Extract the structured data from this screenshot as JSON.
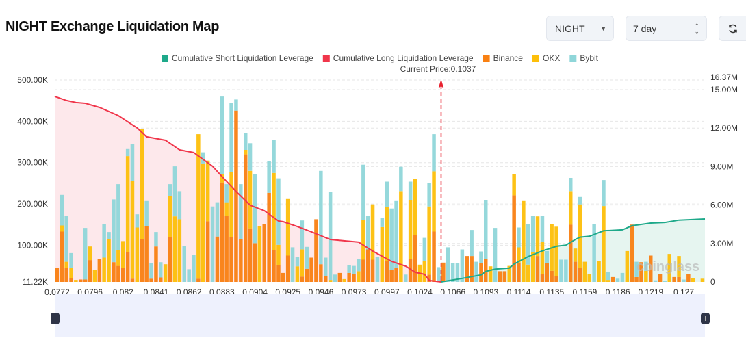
{
  "header": {
    "title": "NIGHT Exchange Liquidation Map",
    "symbol_select": {
      "value": "NIGHT",
      "icon": "caret-down-icon"
    },
    "period_select": {
      "value": "7 day",
      "icon": "updown-icon"
    },
    "refresh_icon": "refresh-icon"
  },
  "watermark": "coinglass",
  "chart_data": {
    "type": "bar",
    "stacked": true,
    "legend_position": "top",
    "legend": [
      {
        "name": "Cumulative Short Liquidation Leverage",
        "color": "#1ea98a"
      },
      {
        "name": "Cumulative Long Liquidation Leverage",
        "color": "#f0364b"
      },
      {
        "name": "Binance",
        "color": "#f98012"
      },
      {
        "name": "OKX",
        "color": "#fdbf0a"
      },
      {
        "name": "Bybit",
        "color": "#8fd6d9"
      }
    ],
    "current_price_label": "Current Price:0.1037",
    "left_axis": {
      "ticks": [
        "500.00K",
        "400.00K",
        "300.00K",
        "200.00K",
        "100.00K",
        "11.22K"
      ],
      "tick_values": [
        500,
        400,
        300,
        200,
        100,
        11.22
      ],
      "unit": "K",
      "ylim": [
        11.22,
        500
      ]
    },
    "right_axis": {
      "ticks": [
        "16.37M",
        "15.00M",
        "12.00M",
        "9.00M",
        "6.00M",
        "3.00M",
        "0"
      ],
      "tick_values": [
        16.37,
        15,
        12,
        9,
        6,
        3,
        0
      ],
      "unit": "M",
      "ylim": [
        0,
        16.37
      ]
    },
    "x_tick_labels": [
      "0.0772",
      "0.0796",
      "0.082",
      "0.0841",
      "0.0862",
      "0.0883",
      "0.0904",
      "0.0925",
      "0.0946",
      "0.0973",
      "0.0997",
      "0.1024",
      "0.1066",
      "0.1093",
      "0.1114",
      "0.1135",
      "0.1159",
      "0.1186",
      "0.1219",
      "0.127"
    ],
    "grid": true,
    "bars_binance_okx_bybit_K": [
      [
        45,
        0,
        0
      ],
      [
        133,
        15,
        74
      ],
      [
        45,
        15,
        112
      ],
      [
        20,
        25,
        36
      ],
      [
        0,
        16,
        0
      ],
      [
        17,
        0,
        0
      ],
      [
        17,
        0,
        125
      ],
      [
        64,
        33,
        0
      ],
      [
        0,
        41,
        0
      ],
      [
        67,
        0,
        0
      ],
      [
        0,
        70,
        81
      ],
      [
        0,
        115,
        17
      ],
      [
        59,
        0,
        152
      ],
      [
        50,
        38,
        160
      ],
      [
        46,
        64,
        0
      ],
      [
        84,
        232,
        17
      ],
      [
        19,
        237,
        89
      ],
      [
        0,
        143,
        32
      ],
      [
        115,
        266,
        0
      ],
      [
        147,
        0,
        60
      ],
      [
        19,
        0,
        38
      ],
      [
        97,
        0,
        35
      ],
      [
        22,
        0,
        37
      ],
      [
        0,
        54,
        0
      ],
      [
        120,
        99,
        29
      ],
      [
        0,
        170,
        121
      ],
      [
        0,
        163,
        68
      ],
      [
        0,
        0,
        99
      ],
      [
        0,
        0,
        42
      ],
      [
        0,
        0,
        77
      ],
      [
        19,
        350,
        0
      ],
      [
        0,
        298,
        27
      ],
      [
        158,
        147,
        0
      ],
      [
        0,
        0,
        194
      ],
      [
        121,
        0,
        83
      ],
      [
        252,
        20,
        188
      ],
      [
        171,
        33,
        44
      ],
      [
        120,
        158,
        167
      ],
      [
        426,
        0,
        27
      ],
      [
        114,
        0,
        134
      ],
      [
        320,
        11,
        40
      ],
      [
        141,
        139,
        67
      ],
      [
        105,
        0,
        168
      ],
      [
        0,
        146,
        0
      ],
      [
        152,
        0,
        0
      ],
      [
        227,
        0,
        76
      ],
      [
        89,
        186,
        80
      ],
      [
        51,
        50,
        161
      ],
      [
        33,
        0,
        0
      ],
      [
        75,
        137,
        0
      ],
      [
        0,
        0,
        95
      ],
      [
        0,
        49,
        22
      ],
      [
        24,
        66,
        70
      ],
      [
        43,
        0,
        53
      ],
      [
        70,
        0,
        0
      ],
      [
        163,
        0,
        0
      ],
      [
        54,
        0,
        226
      ],
      [
        26,
        0,
        44
      ],
      [
        0,
        16,
        214
      ],
      [
        0,
        0,
        29
      ],
      [
        33,
        0,
        0
      ],
      [
        0,
        18,
        0
      ],
      [
        33,
        0,
        19
      ],
      [
        31,
        0,
        19
      ],
      [
        0,
        37,
        30
      ],
      [
        65,
        96,
        134
      ],
      [
        90,
        0,
        81
      ],
      [
        65,
        134,
        0
      ],
      [
        0,
        0,
        71
      ],
      [
        0,
        144,
        22
      ],
      [
        61,
        132,
        61
      ],
      [
        40,
        0,
        149
      ],
      [
        46,
        0,
        161
      ],
      [
        0,
        231,
        59
      ],
      [
        0,
        0,
        29
      ],
      [
        66,
        144,
        44
      ],
      [
        124,
        137,
        0
      ],
      [
        0,
        53,
        0
      ],
      [
        0,
        62,
        56
      ],
      [
        29,
        165,
        57
      ],
      [
        133,
        146,
        90
      ],
      [
        0,
        0,
        47
      ],
      [
        58,
        0,
        0
      ],
      [
        0,
        0,
        95
      ],
      [
        0,
        0,
        56
      ],
      [
        0,
        0,
        56
      ],
      [
        0,
        0,
        90
      ],
      [
        74,
        0,
        0
      ],
      [
        74,
        0,
        63
      ],
      [
        0,
        0,
        60
      ],
      [
        56,
        0,
        29
      ],
      [
        66,
        0,
        144
      ],
      [
        0,
        49,
        0
      ],
      [
        0,
        0,
        142
      ],
      [
        37,
        0,
        0
      ],
      [
        37,
        0,
        0
      ],
      [
        0,
        50,
        0
      ],
      [
        221,
        51,
        0
      ],
      [
        58,
        37,
        48
      ],
      [
        0,
        207,
        0
      ],
      [
        0,
        53,
        98
      ],
      [
        0,
        83,
        89
      ],
      [
        74,
        96,
        0
      ],
      [
        30,
        78,
        64
      ],
      [
        57,
        0,
        29
      ],
      [
        38,
        114,
        0
      ],
      [
        25,
        120,
        0
      ],
      [
        0,
        0,
        65
      ],
      [
        0,
        0,
        65
      ],
      [
        150,
        81,
        32
      ],
      [
        60,
        32,
        0
      ],
      [
        45,
        154,
        18
      ],
      [
        0,
        60,
        0
      ],
      [
        0,
        31,
        0
      ],
      [
        0,
        0,
        151
      ],
      [
        0,
        61,
        0
      ],
      [
        0,
        195,
        63
      ],
      [
        0,
        16,
        19
      ],
      [
        23,
        0,
        0
      ],
      [
        0,
        0,
        19
      ],
      [
        0,
        0,
        33
      ],
      [
        0,
        86,
        0
      ],
      [
        150,
        0,
        0
      ],
      [
        23,
        0,
        37
      ],
      [
        59,
        0,
        0
      ],
      [
        0,
        38,
        22
      ],
      [
        75,
        0,
        0
      ],
      [
        0,
        0,
        15
      ],
      [
        30,
        0,
        0
      ],
      [
        0,
        0,
        14
      ],
      [
        0,
        79,
        0
      ],
      [
        23,
        0,
        0
      ],
      [
        23,
        51,
        0
      ],
      [
        0,
        0,
        17
      ],
      [
        30,
        0,
        0
      ],
      [
        0,
        20,
        0
      ],
      [
        0,
        0,
        7
      ],
      [
        0,
        19,
        0
      ]
    ],
    "long_cumulative_M": [
      [
        0,
        14.47
      ],
      [
        2,
        14.15
      ],
      [
        4,
        13.99
      ],
      [
        6,
        13.93
      ],
      [
        9,
        13.61
      ],
      [
        13,
        12.97
      ],
      [
        17,
        12.01
      ],
      [
        19,
        11.32
      ],
      [
        23,
        11.05
      ],
      [
        26,
        10.3
      ],
      [
        29,
        10.09
      ],
      [
        33,
        9.02
      ],
      [
        35,
        8.22
      ],
      [
        38,
        7.05
      ],
      [
        41,
        5.98
      ],
      [
        44,
        5.55
      ],
      [
        47,
        4.75
      ],
      [
        48,
        4.7
      ],
      [
        51,
        4.32
      ],
      [
        54,
        3.9
      ],
      [
        58,
        3.31
      ],
      [
        64,
        3.1
      ],
      [
        67,
        2.4
      ],
      [
        71,
        1.6
      ],
      [
        74,
        1.23
      ],
      [
        76,
        0.75
      ],
      [
        78,
        0.59
      ],
      [
        79,
        0.11
      ],
      [
        80,
        0
      ]
    ],
    "short_cumulative_M": [
      [
        81,
        0
      ],
      [
        86,
        0.28
      ],
      [
        90,
        0.55
      ],
      [
        91,
        0.82
      ],
      [
        93,
        1.0
      ],
      [
        96,
        1.08
      ],
      [
        97,
        1.4
      ],
      [
        100,
        1.98
      ],
      [
        103,
        2.42
      ],
      [
        106,
        2.78
      ],
      [
        108,
        2.87
      ],
      [
        110,
        3.31
      ],
      [
        111,
        3.49
      ],
      [
        113,
        3.56
      ],
      [
        116,
        3.99
      ],
      [
        120,
        4.06
      ],
      [
        122,
        4.38
      ],
      [
        126,
        4.59
      ],
      [
        129,
        4.64
      ],
      [
        132,
        4.82
      ],
      [
        137,
        4.91
      ]
    ],
    "current_price_position_between_bars": [
      81,
      82
    ]
  }
}
